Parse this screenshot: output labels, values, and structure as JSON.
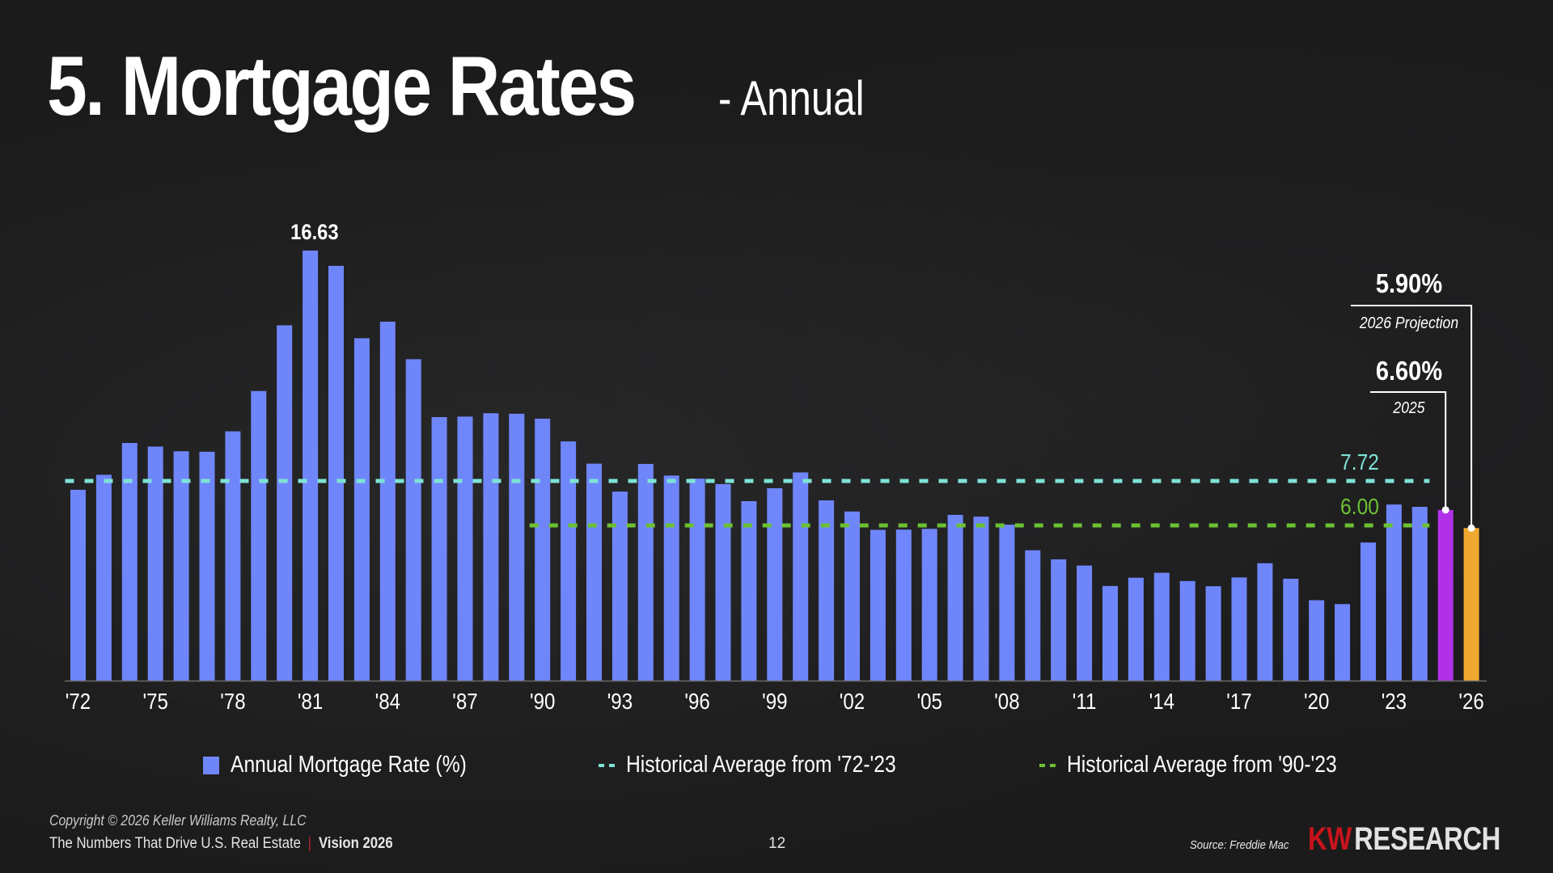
{
  "header": {
    "title": "5. Mortgage Rates",
    "subtitle": "- Annual"
  },
  "chart_data": {
    "type": "bar",
    "title": "5. Mortgage Rates - Annual",
    "xlabel": "",
    "ylabel": "Annual Mortgage Rate (%)",
    "ylim": [
      0,
      17.5
    ],
    "grid": false,
    "categories": [
      "1972",
      "1973",
      "1974",
      "1975",
      "1976",
      "1977",
      "1978",
      "1979",
      "1980",
      "1981",
      "1982",
      "1983",
      "1984",
      "1985",
      "1986",
      "1987",
      "1988",
      "1989",
      "1990",
      "1991",
      "1992",
      "1993",
      "1994",
      "1995",
      "1996",
      "1997",
      "1998",
      "1999",
      "2000",
      "2001",
      "2002",
      "2003",
      "2004",
      "2005",
      "2006",
      "2007",
      "2008",
      "2009",
      "2010",
      "2011",
      "2012",
      "2013",
      "2014",
      "2015",
      "2016",
      "2017",
      "2018",
      "2019",
      "2020",
      "2021",
      "2022",
      "2023",
      "2024",
      "2025",
      "2026"
    ],
    "tick_labels": [
      "'72",
      "'75",
      "'78",
      "'81",
      "'84",
      "'87",
      "'90",
      "'93",
      "'96",
      "'99",
      "'02",
      "'05",
      "'08",
      "'11",
      "'14",
      "'17",
      "'20",
      "'23",
      "'26"
    ],
    "series": [
      {
        "name": "Annual Mortgage Rate (%)",
        "color": "#6f86fb",
        "values": [
          7.38,
          7.96,
          9.19,
          9.05,
          8.87,
          8.85,
          9.64,
          11.2,
          13.74,
          16.63,
          16.04,
          13.24,
          13.88,
          12.43,
          10.19,
          10.21,
          10.34,
          10.32,
          10.13,
          9.25,
          8.39,
          7.31,
          8.38,
          7.93,
          7.81,
          7.6,
          6.94,
          7.44,
          8.05,
          6.97,
          6.54,
          5.83,
          5.84,
          5.87,
          6.41,
          6.34,
          6.03,
          5.04,
          4.69,
          4.45,
          3.66,
          3.98,
          4.17,
          3.85,
          3.65,
          3.99,
          4.54,
          3.94,
          3.11,
          2.96,
          5.34,
          6.81,
          6.72,
          6.6,
          5.9
        ]
      },
      {
        "name": "Historical Average from '72-'23",
        "type": "hline",
        "color": "#7ee3d6",
        "value": 7.72,
        "from": "1972",
        "to": "2024",
        "label": "7.72"
      },
      {
        "name": "Historical Average from '90-'23",
        "type": "hline",
        "color": "#6cc132",
        "value": 6.0,
        "from": "1990",
        "to": "2024",
        "label": "6.00"
      }
    ],
    "highlight_colors": {
      "2025": "#b131e8",
      "2026": "#f0a830"
    },
    "data_labels": [
      {
        "category": "1981",
        "text": "16.63"
      }
    ],
    "annotations": [
      {
        "category": "2026",
        "value_text": "5.90%",
        "caption": "2026 Projection"
      },
      {
        "category": "2025",
        "value_text": "6.60%",
        "caption": "2025"
      }
    ],
    "legend": {
      "position": "bottom",
      "entries": [
        {
          "label": "Annual Mortgage Rate (%)",
          "color": "#6f86fb",
          "kind": "bar"
        },
        {
          "label": "Historical Average from '72-'23",
          "color": "#7ee3d6",
          "kind": "dash"
        },
        {
          "label": "Historical Average from '90-'23",
          "color": "#6cc132",
          "kind": "dash"
        }
      ]
    }
  },
  "footer": {
    "copyright": "Copyright © 2026 Keller Williams Realty, LLC",
    "tagline": "The Numbers That Drive U.S. Real Estate",
    "separator": "|",
    "vision": "Vision 2026",
    "page_number": "12",
    "source": "Source: Freddie Mac",
    "logo_kw": "KW",
    "logo_research": "RESEARCH"
  }
}
